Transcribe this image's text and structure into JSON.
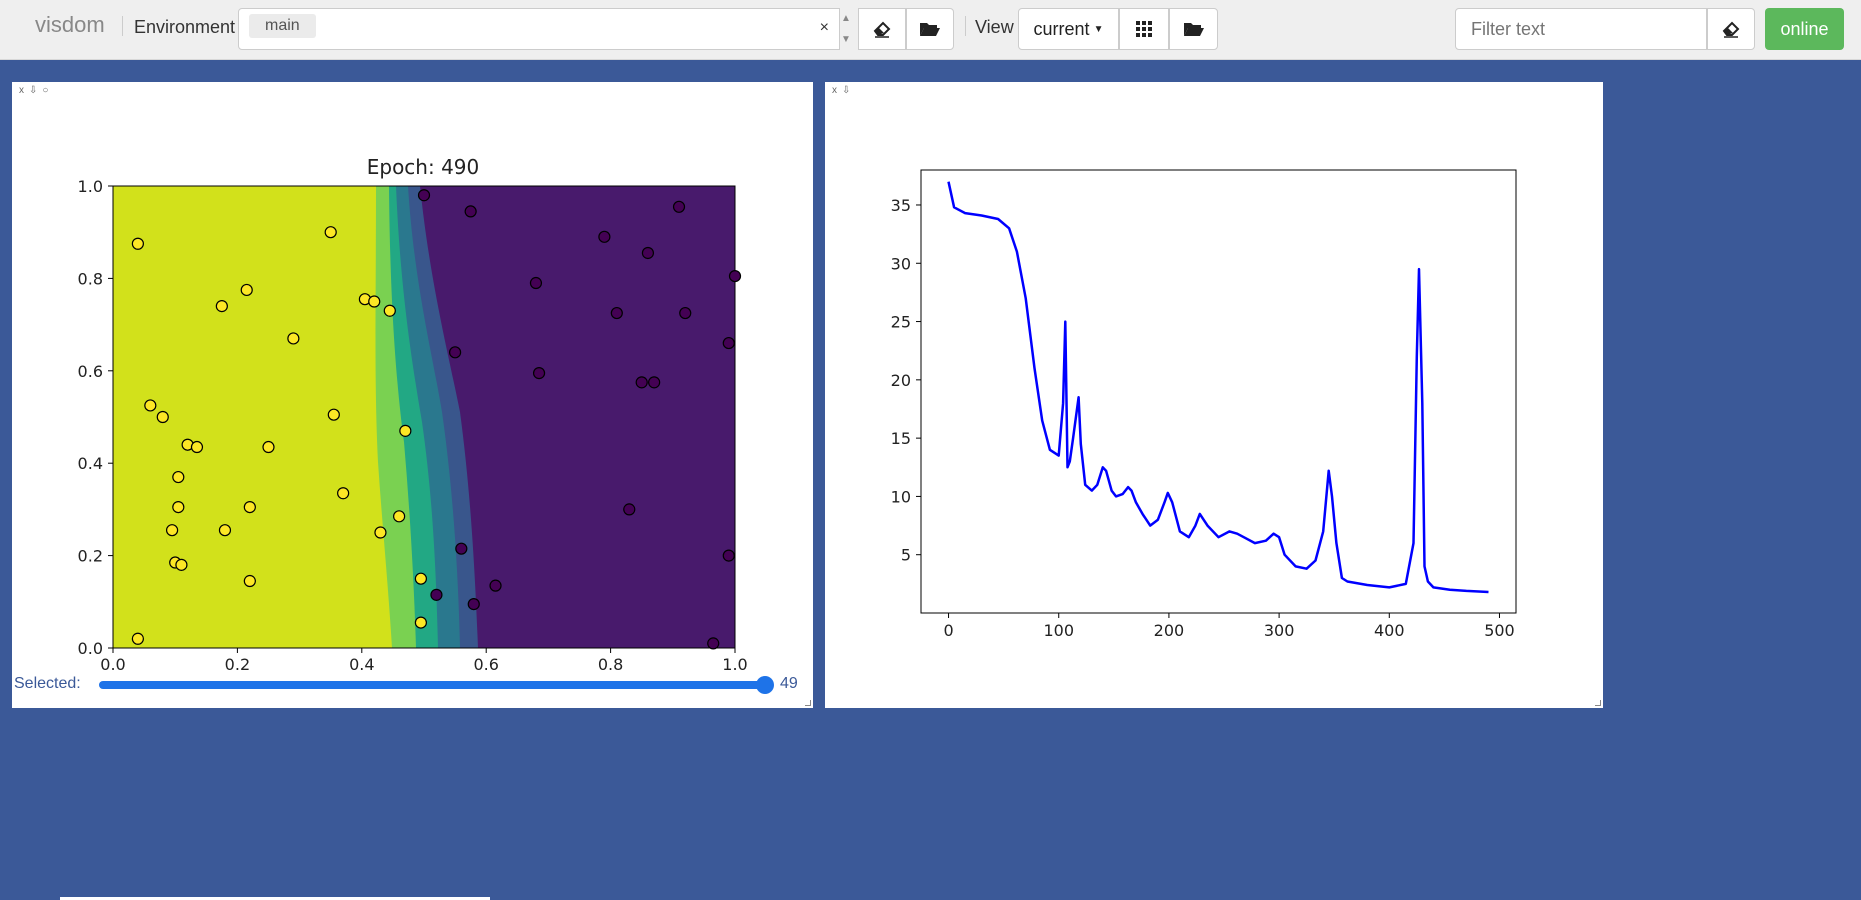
{
  "topbar": {
    "brand": "visdom",
    "environment_label": "Environment",
    "environment_value": "main",
    "clear_glyph": "×",
    "view_label": "View",
    "view_select": "current",
    "filter_placeholder": "Filter text",
    "status_button": "online"
  },
  "icons": [
    "eraser-icon",
    "folder-open-icon",
    "grid-icon",
    "folder-open-icon",
    "eraser-icon"
  ],
  "left_pane": {
    "title": "Epoch: 490",
    "slider_label": "Selected:",
    "slider_value": "49",
    "slider_fraction": 1.0,
    "chart_data": {
      "type": "scatter",
      "title": "Epoch: 490",
      "xlim": [
        0,
        1
      ],
      "ylim": [
        0,
        1
      ],
      "x_ticks": [
        "0.0",
        "0.2",
        "0.4",
        "0.6",
        "0.8",
        "1.0"
      ],
      "y_ticks": [
        "0.0",
        "0.2",
        "0.4",
        "0.6",
        "0.8",
        "1.0"
      ],
      "background": "decision-boundary contour (yellow left, purple right)",
      "series": [
        {
          "color": "#fde725",
          "points": [
            [
              0.04,
              0.875
            ],
            [
              0.35,
              0.9
            ],
            [
              0.215,
              0.775
            ],
            [
              0.175,
              0.74
            ],
            [
              0.29,
              0.67
            ],
            [
              0.405,
              0.755
            ],
            [
              0.42,
              0.75
            ],
            [
              0.445,
              0.73
            ],
            [
              0.06,
              0.525
            ],
            [
              0.08,
              0.5
            ],
            [
              0.355,
              0.505
            ],
            [
              0.12,
              0.44
            ],
            [
              0.135,
              0.435
            ],
            [
              0.25,
              0.435
            ],
            [
              0.47,
              0.47
            ],
            [
              0.105,
              0.37
            ],
            [
              0.37,
              0.335
            ],
            [
              0.105,
              0.305
            ],
            [
              0.22,
              0.305
            ],
            [
              0.095,
              0.255
            ],
            [
              0.18,
              0.255
            ],
            [
              0.43,
              0.25
            ],
            [
              0.46,
              0.285
            ],
            [
              0.1,
              0.185
            ],
            [
              0.11,
              0.18
            ],
            [
              0.22,
              0.145
            ],
            [
              0.495,
              0.15
            ],
            [
              0.495,
              0.055
            ],
            [
              0.04,
              0.02
            ]
          ]
        },
        {
          "color": "#440154",
          "points": [
            [
              0.5,
              0.98
            ],
            [
              0.575,
              0.945
            ],
            [
              0.91,
              0.955
            ],
            [
              0.79,
              0.89
            ],
            [
              0.86,
              0.855
            ],
            [
              0.68,
              0.79
            ],
            [
              0.81,
              0.725
            ],
            [
              0.92,
              0.725
            ],
            [
              0.55,
              0.64
            ],
            [
              0.99,
              0.66
            ],
            [
              1.0,
              0.805
            ],
            [
              0.685,
              0.595
            ],
            [
              0.85,
              0.575
            ],
            [
              0.87,
              0.575
            ],
            [
              0.83,
              0.3
            ],
            [
              0.56,
              0.215
            ],
            [
              0.99,
              0.2
            ],
            [
              0.615,
              0.135
            ],
            [
              0.52,
              0.115
            ],
            [
              0.58,
              0.095
            ],
            [
              0.965,
              0.01
            ]
          ]
        }
      ]
    }
  },
  "right_pane": {
    "chart_data": {
      "type": "line",
      "xlim": [
        -25,
        515
      ],
      "ylim": [
        0,
        38
      ],
      "x_ticks": [
        "0",
        "100",
        "200",
        "300",
        "400",
        "500"
      ],
      "y_ticks": [
        "5",
        "10",
        "15",
        "20",
        "25",
        "30",
        "35"
      ],
      "series": [
        {
          "color": "#0000ff",
          "x": [
            0,
            5,
            15,
            30,
            45,
            55,
            62,
            70,
            78,
            85,
            92,
            100,
            104,
            106,
            108,
            110,
            113,
            118,
            120,
            124,
            130,
            135,
            140,
            143,
            148,
            152,
            158,
            163,
            166,
            170,
            176,
            183,
            190,
            196,
            199,
            203,
            210,
            218,
            224,
            228,
            235,
            245,
            255,
            262,
            268,
            278,
            288,
            295,
            300,
            305,
            315,
            325,
            333,
            340,
            345,
            348,
            352,
            357,
            362,
            380,
            400,
            415,
            422,
            425,
            427,
            430,
            432,
            435,
            440,
            455,
            470,
            490
          ],
          "y": [
            37,
            34.8,
            34.3,
            34.1,
            33.8,
            33,
            31,
            27,
            21,
            16.5,
            14,
            13.5,
            18,
            25,
            12.5,
            13,
            15,
            18.5,
            14.5,
            11,
            10.5,
            11,
            12.5,
            12.2,
            10.5,
            10,
            10.2,
            10.8,
            10.5,
            9.5,
            8.5,
            7.5,
            8,
            9.5,
            10.3,
            9.5,
            7,
            6.5,
            7.5,
            8.5,
            7.5,
            6.5,
            7,
            6.8,
            6.5,
            6,
            6.2,
            6.8,
            6.5,
            5,
            4,
            3.8,
            4.5,
            7,
            12.2,
            10,
            6,
            3,
            2.7,
            2.4,
            2.2,
            2.5,
            6,
            22,
            29.5,
            18,
            4,
            2.7,
            2.2,
            2,
            1.9,
            1.8
          ]
        }
      ]
    }
  }
}
